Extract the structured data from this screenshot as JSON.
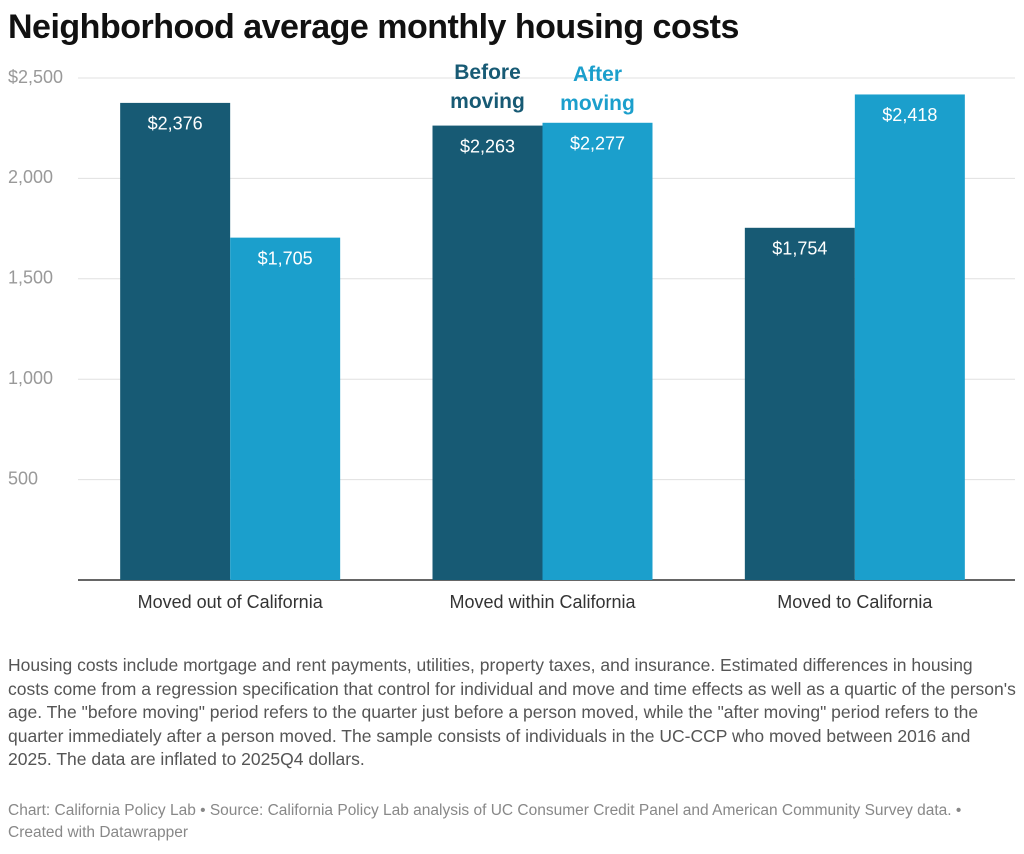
{
  "chart_data": {
    "type": "bar",
    "title": "Neighborhood average monthly housing costs",
    "categories": [
      "Moved out of California",
      "Moved within California",
      "Moved to California"
    ],
    "series": [
      {
        "name": "Before moving",
        "color": "#175a74",
        "values": [
          2376,
          2263,
          1754
        ],
        "value_labels": [
          "$2,376",
          "$2,263",
          "$1,754"
        ]
      },
      {
        "name": "After moving",
        "color": "#1b9fcc",
        "values": [
          1705,
          2277,
          2418
        ],
        "value_labels": [
          "$1,705",
          "$2,277",
          "$2,418"
        ]
      }
    ],
    "ylim": [
      0,
      2500
    ],
    "yticks": [
      500,
      {
        "value": 1000,
        "label": "1,000"
      },
      {
        "value": 1500,
        "label": "1,500"
      },
      {
        "value": 2000,
        "label": "2,000"
      },
      {
        "value": 2500,
        "label": "$2,500"
      }
    ],
    "grid": true,
    "notes": "Housing costs include mortgage and rent payments, utilities, property taxes, and insurance. Estimated differences in housing costs come from a regression specification that control for individual and move and time effects as well as a quartic of the person's age. The \"before moving\" period refers to the quarter just before a person moved, while the \"after moving\" period refers to the quarter immediately after a person moved. The sample consists of individuals in the UC-CCP who moved between 2016 and 2025. The data are inflated to 2025Q4 dollars.",
    "source": "Chart: California Policy Lab • Source: California Policy Lab analysis of UC Consumer Credit Panel and American Community Survey data. • Created with Datawrapper"
  }
}
